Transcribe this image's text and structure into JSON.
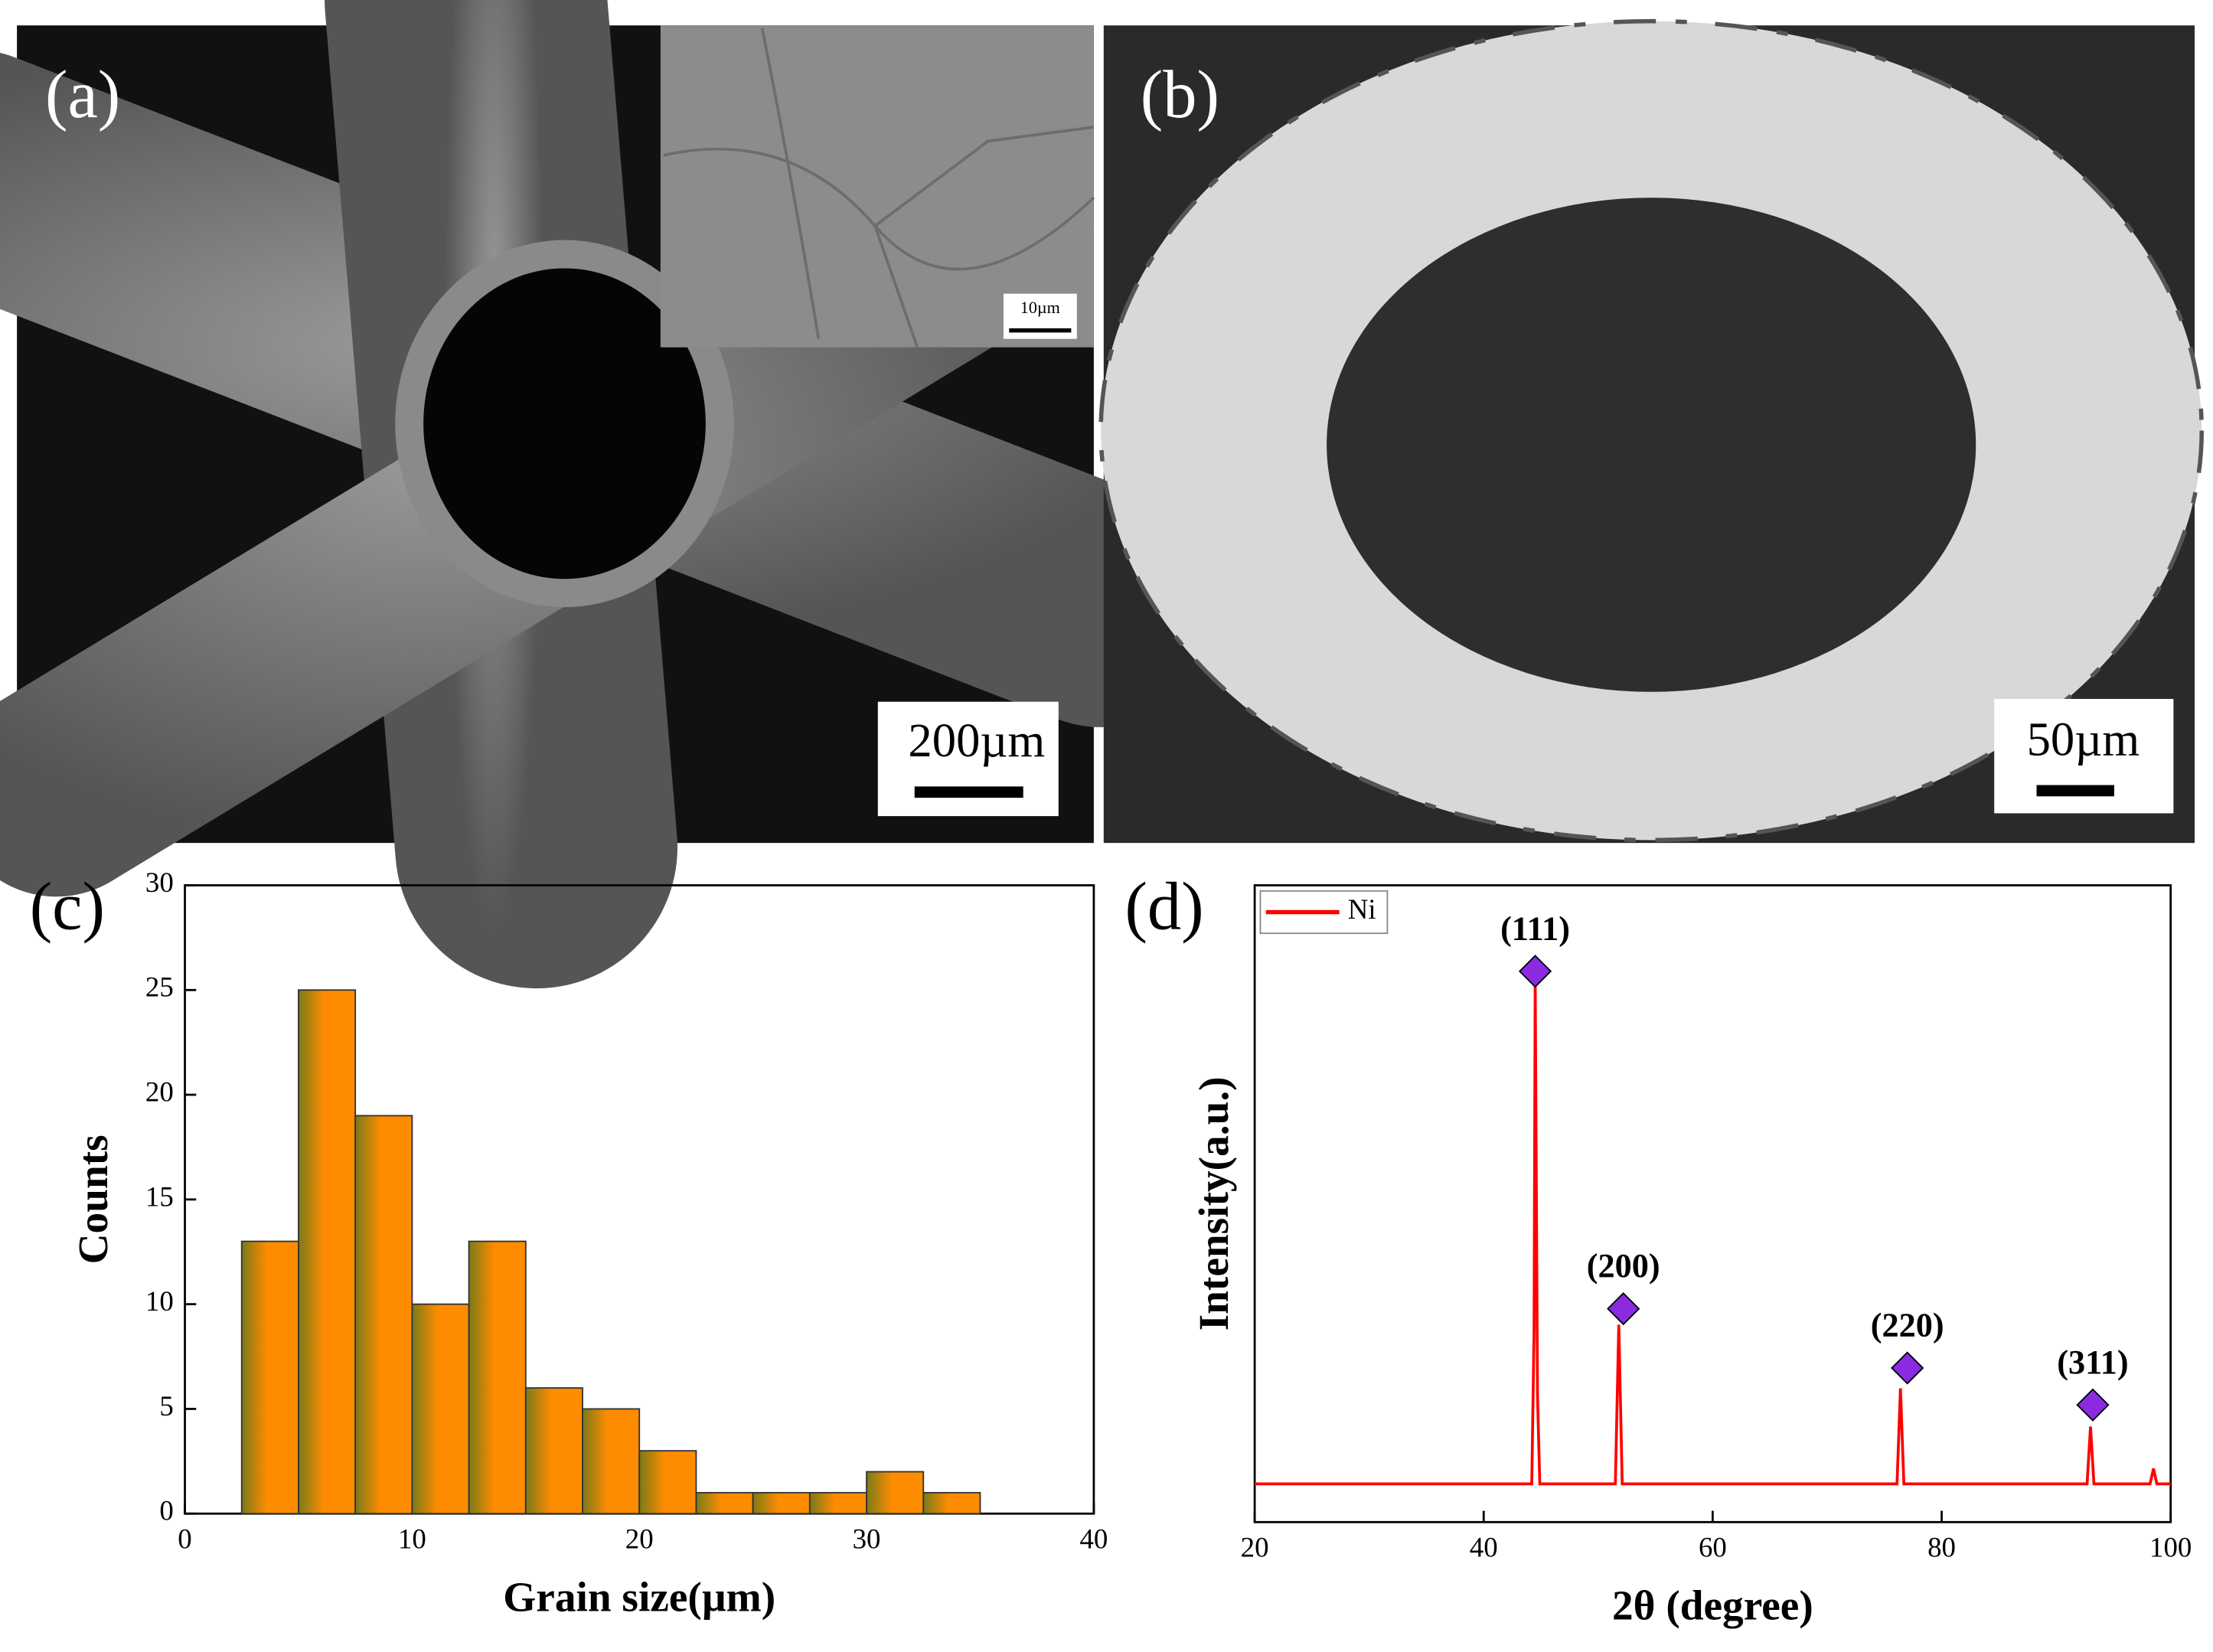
{
  "images": [
    {
      "label": "(a)",
      "scale_bar": "200µm",
      "inset_scale_bar": "10µm"
    },
    {
      "label": "(b)",
      "scale_bar": "50µm"
    }
  ],
  "chart_data": [
    {
      "type": "histogram",
      "panel_label": "(c)",
      "x_label": "Grain size(µm)",
      "y_label": "Counts",
      "bins": [
        2.5,
        5,
        7.5,
        10,
        12.5,
        15,
        17.5,
        20,
        22.5,
        25,
        27.5,
        30,
        32.5,
        35
      ],
      "counts": [
        13,
        25,
        19,
        10,
        13,
        6,
        5,
        3,
        1,
        1,
        1,
        2,
        1
      ],
      "color": "#ff8c00",
      "xlim": [
        0,
        40
      ],
      "xticks": [
        0,
        10,
        20,
        30,
        40
      ],
      "ylim": [
        0,
        30
      ],
      "yticks": [
        0,
        5,
        10,
        15,
        20,
        25,
        30
      ]
    },
    {
      "type": "line",
      "panel_label": "(d)",
      "x_label": "2θ (degree)",
      "y_label": "Intensity(a.u.)",
      "x": [
        20,
        44.2,
        44.4,
        44.5,
        44.7,
        44.9,
        51.5,
        51.8,
        52.1,
        76.1,
        76.4,
        76.7,
        92.7,
        93,
        93.3,
        98.2,
        98.5,
        98.8,
        100
      ],
      "series": [
        {
          "name": "Ni",
          "color": "#ff0000",
          "values": [
            6,
            6,
            30,
            85,
            20,
            6,
            6,
            31,
            6,
            6,
            21,
            6,
            6,
            15,
            6,
            6,
            8.4,
            6,
            6
          ]
        }
      ],
      "annotations": [
        {
          "label": "(111)",
          "x": 44.5,
          "y": 86.5
        },
        {
          "label": "(200)",
          "x": 52.2,
          "y": 33.5
        },
        {
          "label": "(220)",
          "x": 77,
          "y": 24.2
        },
        {
          "label": "(311)",
          "x": 93.2,
          "y": 18.4
        }
      ],
      "marker_color": "#8a2be2",
      "legend": "upper left",
      "xlim": [
        20,
        100
      ],
      "xticks": [
        20,
        40,
        60,
        80,
        100
      ],
      "ylim": [
        0,
        100
      ]
    }
  ]
}
